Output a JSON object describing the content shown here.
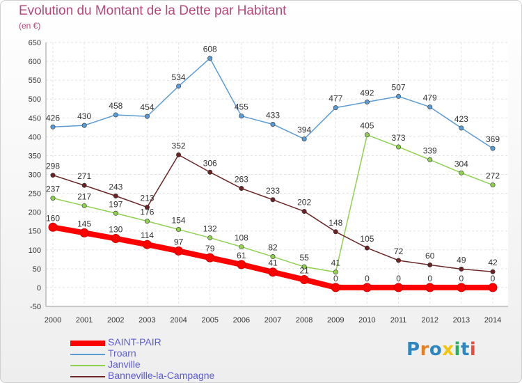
{
  "chart_data": {
    "type": "line",
    "title": "Evolution du Montant de la Dette par Habitant",
    "unit": "(en €)",
    "x": [
      "2000",
      "2001",
      "2002",
      "2003",
      "2004",
      "2005",
      "2006",
      "2007",
      "2008",
      "2009",
      "2010",
      "2011",
      "2012",
      "2013",
      "2014"
    ],
    "ylim": [
      -50,
      650
    ],
    "yticks": [
      -50,
      0,
      50,
      100,
      150,
      200,
      250,
      300,
      350,
      400,
      450,
      500,
      550,
      600,
      650
    ],
    "grid": true,
    "legend_position": "bottom-left",
    "series": [
      {
        "name": "SAINT-PAIR",
        "color": "#ff0000",
        "values": [
          160,
          145,
          130,
          114,
          97,
          79,
          61,
          41,
          21,
          0,
          0,
          0,
          0,
          0,
          0
        ]
      },
      {
        "name": "Troarn",
        "color": "#5b9bd5",
        "values": [
          426,
          430,
          458,
          454,
          534,
          608,
          455,
          433,
          394,
          477,
          492,
          507,
          479,
          423,
          369
        ]
      },
      {
        "name": "Janville",
        "color": "#8fd14f",
        "values": [
          237,
          217,
          197,
          176,
          154,
          132,
          108,
          82,
          55,
          41,
          405,
          373,
          339,
          304,
          272
        ]
      },
      {
        "name": "Banneville-la-Campagne",
        "color": "#6b2323",
        "values": [
          298,
          271,
          243,
          213,
          352,
          306,
          263,
          233,
          202,
          148,
          105,
          72,
          60,
          49,
          42
        ]
      }
    ]
  },
  "logo": {
    "letters": [
      {
        "char": "P",
        "color": "#2e86c1"
      },
      {
        "char": "r",
        "color": "#e67e22"
      },
      {
        "char": "o",
        "color": "#2e86c1"
      },
      {
        "char": "x",
        "color": "#f1c40f"
      },
      {
        "char": "i",
        "color": "#27ae60"
      },
      {
        "char": "t",
        "color": "#2e86c1"
      },
      {
        "char": "i",
        "color": "#e74c3c"
      }
    ]
  }
}
